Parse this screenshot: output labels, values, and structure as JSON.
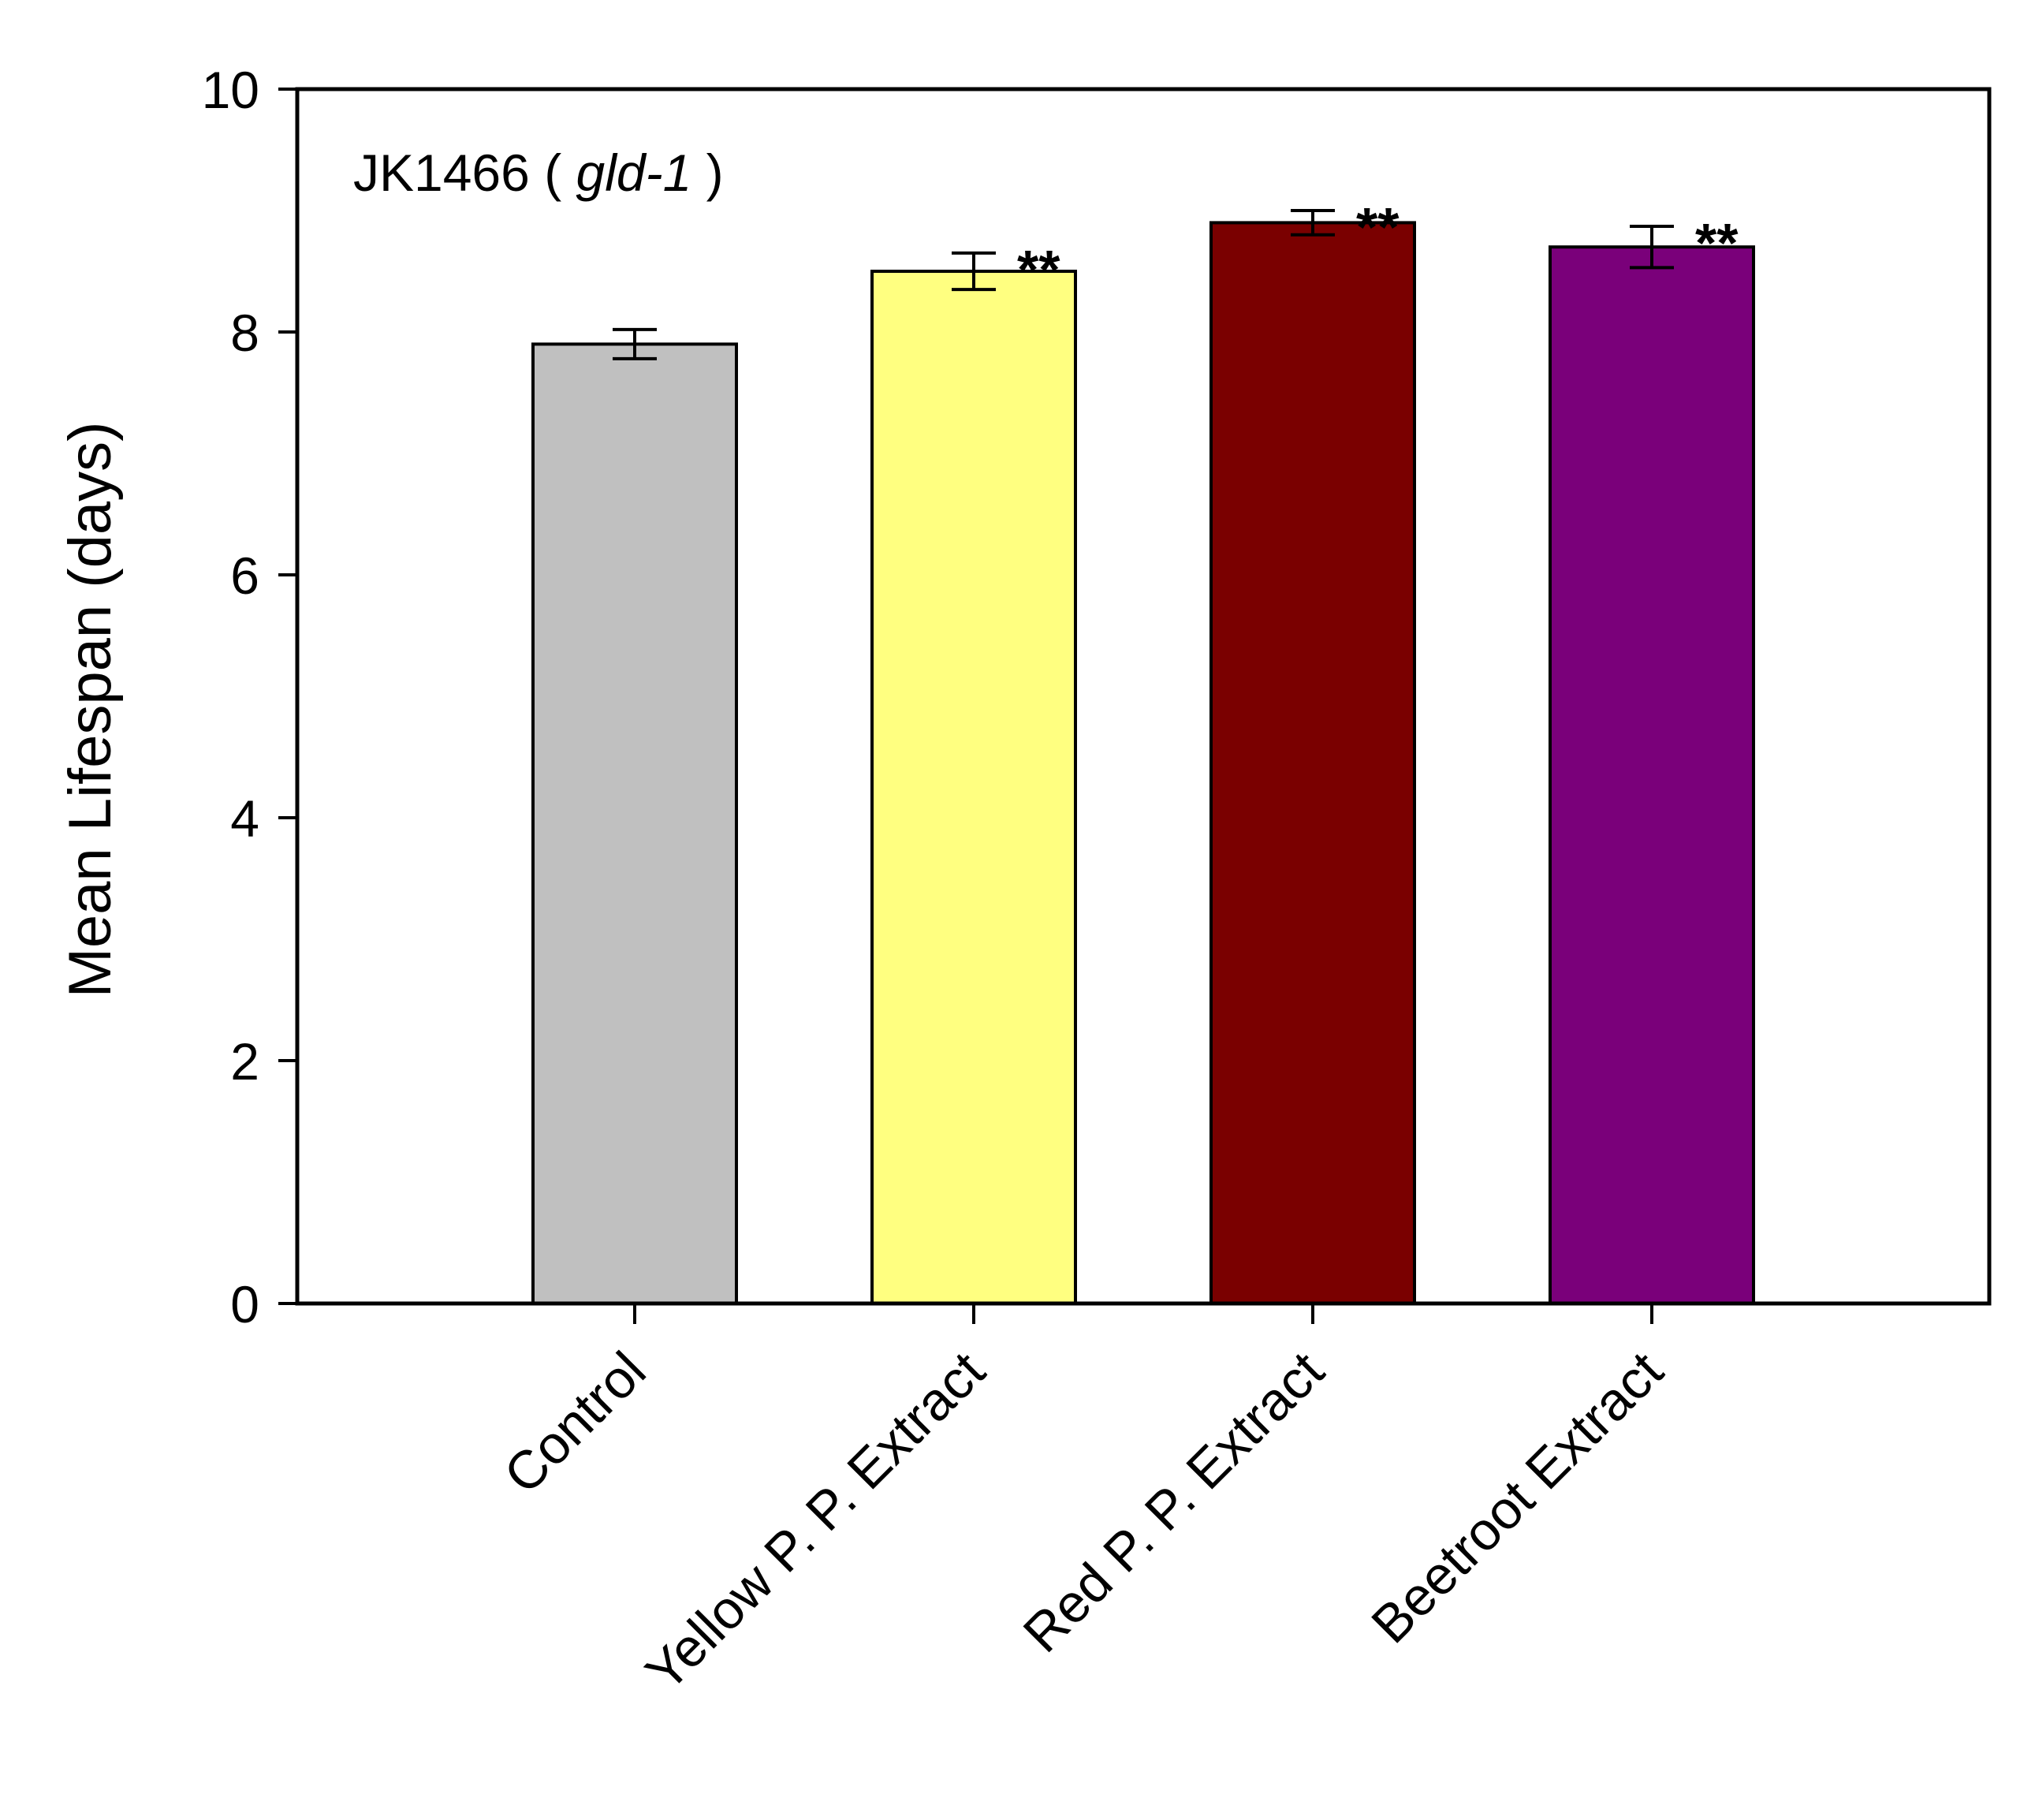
{
  "chart_data": {
    "type": "bar",
    "title": "",
    "annotation": {
      "strain": "JK1466",
      "gene": "gld-1"
    },
    "xlabel": "",
    "ylabel": "Mean Lifespan (days)",
    "ylim": [
      0,
      10
    ],
    "yticks": [
      0,
      2,
      4,
      6,
      8,
      10
    ],
    "grid": false,
    "legend": "none",
    "categories": [
      "Control",
      "Yellow P. P. Extract",
      "Red P. P. Extract",
      "Beetroot Extract"
    ],
    "values": [
      7.9,
      8.5,
      8.9,
      8.7
    ],
    "errors": [
      0.12,
      0.15,
      0.1,
      0.17
    ],
    "significance": [
      "",
      "**",
      "**",
      "**"
    ],
    "colors": [
      "#c0c0c0",
      "#ffff80",
      "#7a0000",
      "#7a007a"
    ]
  }
}
